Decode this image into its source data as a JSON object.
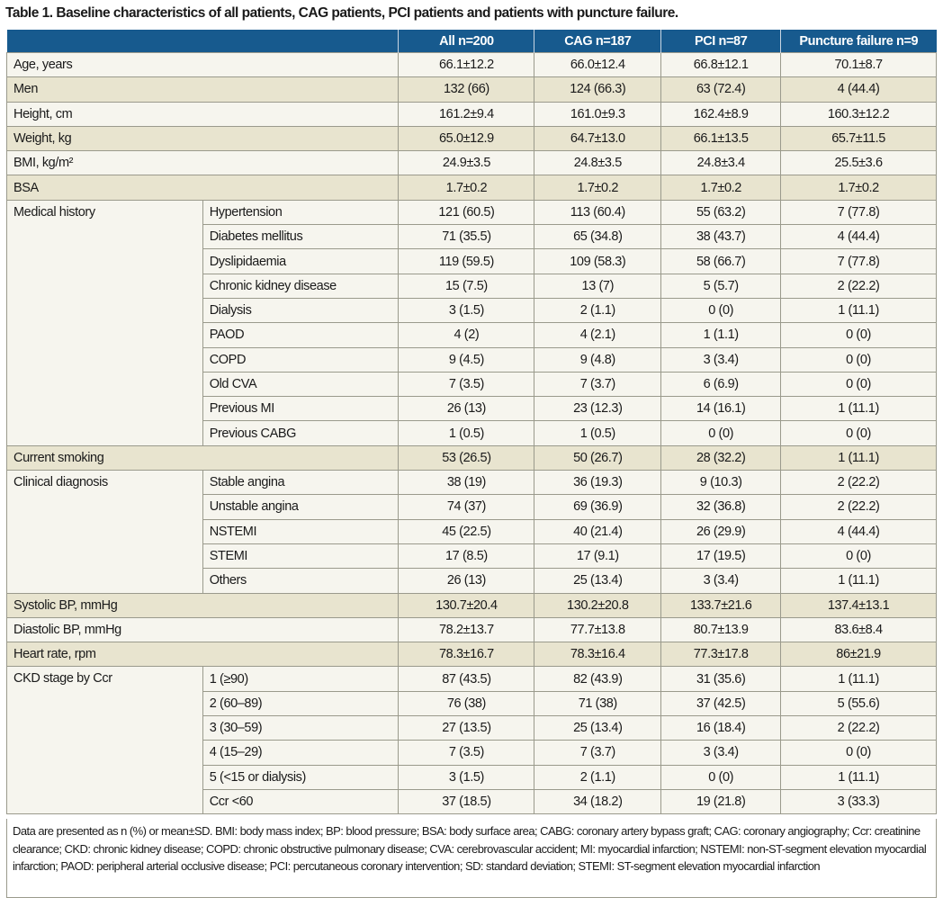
{
  "title": "Table 1. Baseline characteristics of all patients, CAG patients, PCI patients and patients with puncture failure.",
  "columns": [
    "All n=200",
    "CAG n=187",
    "PCI n=87",
    "Puncture failure n=9"
  ],
  "colors": {
    "header": "#175a8e",
    "shaded_row": "#e8e4cf",
    "row": "#f6f5ee"
  },
  "sections": [
    {
      "label": "Age, years",
      "values": [
        "66.1±12.2",
        "66.0±12.4",
        "66.8±12.1",
        "70.1±8.7"
      ]
    },
    {
      "label": "Men",
      "shaded": true,
      "values": [
        "132 (66)",
        "124 (66.3)",
        "63 (72.4)",
        "4 (44.4)"
      ]
    },
    {
      "label": "Height, cm",
      "values": [
        "161.2±9.4",
        "161.0±9.3",
        "162.4±8.9",
        "160.3±12.2"
      ]
    },
    {
      "label": "Weight, kg",
      "shaded": true,
      "values": [
        "65.0±12.9",
        "64.7±13.0",
        "66.1±13.5",
        "65.7±11.5"
      ]
    },
    {
      "label": "BMI, kg/m²",
      "values": [
        "24.9±3.5",
        "24.8±3.5",
        "24.8±3.4",
        "25.5±3.6"
      ]
    },
    {
      "label": "BSA",
      "shaded": true,
      "values": [
        "1.7±0.2",
        "1.7±0.2",
        "1.7±0.2",
        "1.7±0.2"
      ]
    },
    {
      "label": "Medical history",
      "rows": [
        {
          "label": "Hypertension",
          "values": [
            "121 (60.5)",
            "113 (60.4)",
            "55 (63.2)",
            "7 (77.8)"
          ]
        },
        {
          "label": "Diabetes mellitus",
          "values": [
            "71 (35.5)",
            "65 (34.8)",
            "38 (43.7)",
            "4 (44.4)"
          ]
        },
        {
          "label": "Dyslipidaemia",
          "values": [
            "119 (59.5)",
            "109 (58.3)",
            "58 (66.7)",
            "7 (77.8)"
          ]
        },
        {
          "label": "Chronic kidney disease",
          "values": [
            "15 (7.5)",
            "13 (7)",
            "5 (5.7)",
            "2 (22.2)"
          ]
        },
        {
          "label": "Dialysis",
          "values": [
            "3 (1.5)",
            "2 (1.1)",
            "0 (0)",
            "1 (11.1)"
          ]
        },
        {
          "label": "PAOD",
          "values": [
            "4 (2)",
            "4 (2.1)",
            "1 (1.1)",
            "0 (0)"
          ]
        },
        {
          "label": "COPD",
          "values": [
            "9 (4.5)",
            "9 (4.8)",
            "3 (3.4)",
            "0 (0)"
          ]
        },
        {
          "label": "Old CVA",
          "values": [
            "7 (3.5)",
            "7 (3.7)",
            "6 (6.9)",
            "0 (0)"
          ]
        },
        {
          "label": "Previous MI",
          "values": [
            "26 (13)",
            "23 (12.3)",
            "14 (16.1)",
            "1 (11.1)"
          ]
        },
        {
          "label": "Previous CABG",
          "values": [
            "1 (0.5)",
            "1 (0.5)",
            "0 (0)",
            "0 (0)"
          ]
        }
      ]
    },
    {
      "label": "Current smoking",
      "shaded": true,
      "values": [
        "53 (26.5)",
        "50 (26.7)",
        "28 (32.2)",
        "1 (11.1)"
      ]
    },
    {
      "label": "Clinical diagnosis",
      "rows": [
        {
          "label": "Stable angina",
          "values": [
            "38 (19)",
            "36 (19.3)",
            "9 (10.3)",
            "2 (22.2)"
          ]
        },
        {
          "label": "Unstable angina",
          "values": [
            "74 (37)",
            "69 (36.9)",
            "32 (36.8)",
            "2 (22.2)"
          ]
        },
        {
          "label": "NSTEMI",
          "values": [
            "45 (22.5)",
            "40 (21.4)",
            "26 (29.9)",
            "4 (44.4)"
          ]
        },
        {
          "label": "STEMI",
          "values": [
            "17 (8.5)",
            "17 (9.1)",
            "17 (19.5)",
            "0 (0)"
          ]
        },
        {
          "label": "Others",
          "values": [
            "26 (13)",
            "25 (13.4)",
            "3 (3.4)",
            "1 (11.1)"
          ]
        }
      ]
    },
    {
      "label": "Systolic BP, mmHg",
      "shaded": true,
      "values": [
        "130.7±20.4",
        "130.2±20.8",
        "133.7±21.6",
        "137.4±13.1"
      ]
    },
    {
      "label": "Diastolic BP, mmHg",
      "values": [
        "78.2±13.7",
        "77.7±13.8",
        "80.7±13.9",
        "83.6±8.4"
      ]
    },
    {
      "label": "Heart rate, rpm",
      "shaded": true,
      "values": [
        "78.3±16.7",
        "78.3±16.4",
        "77.3±17.8",
        "86±21.9"
      ]
    },
    {
      "label": "CKD stage by Ccr",
      "rows": [
        {
          "label": "1 (≥90)",
          "values": [
            "87 (43.5)",
            "82 (43.9)",
            "31 (35.6)",
            "1 (11.1)"
          ]
        },
        {
          "label": "2 (60–89)",
          "values": [
            "76 (38)",
            "71 (38)",
            "37 (42.5)",
            "5 (55.6)"
          ]
        },
        {
          "label": "3 (30–59)",
          "values": [
            "27 (13.5)",
            "25 (13.4)",
            "16 (18.4)",
            "2 (22.2)"
          ]
        },
        {
          "label": "4 (15–29)",
          "values": [
            "7 (3.5)",
            "7 (3.7)",
            "3 (3.4)",
            "0 (0)"
          ]
        },
        {
          "label": "5 (<15 or dialysis)",
          "values": [
            "3 (1.5)",
            "2 (1.1)",
            "0 (0)",
            "1 (11.1)"
          ]
        },
        {
          "label": "Ccr <60",
          "values": [
            "37 (18.5)",
            "34 (18.2)",
            "19 (21.8)",
            "3 (33.3)"
          ]
        }
      ]
    }
  ],
  "footnote": "Data are presented as n (%) or mean±SD. BMI: body mass index; BP: blood pressure; BSA: body surface area; CABG: coronary artery bypass graft; CAG: coronary angiography; Ccr: creatinine clearance; CKD: chronic kidney disease; COPD: chronic obstructive pulmonary disease; CVA: cerebrovascular accident; MI: myocardial infarction; NSTEMI: non-ST-segment elevation myocardial infarction; PAOD: peripheral arterial occlusive disease; PCI: percutaneous coronary intervention; SD: standard deviation; STEMI: ST-segment elevation myocardial infarction"
}
